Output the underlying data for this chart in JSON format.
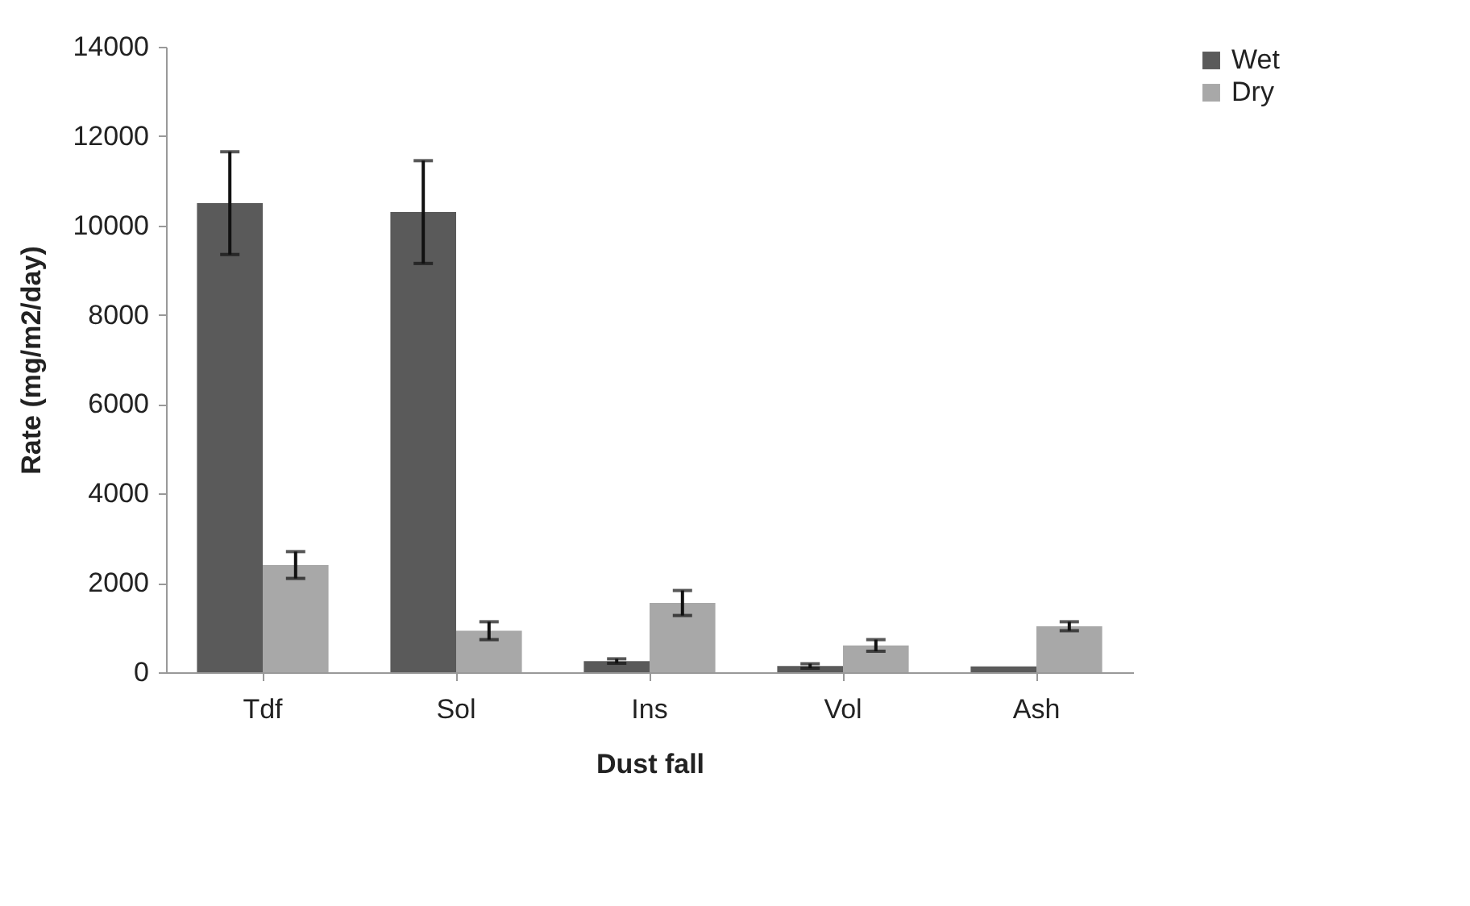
{
  "chart_data": {
    "type": "bar",
    "xlabel": "Dust fall",
    "ylabel": "Rate (mg/m2/day)",
    "categories": [
      "Tdf",
      "Sol",
      "Ins",
      "Vol",
      "Ash"
    ],
    "series": [
      {
        "name": "Wet",
        "color": "#5a5a5a",
        "values": [
          10500,
          10300,
          250,
          140,
          130
        ],
        "errors": [
          1150,
          1150,
          50,
          50,
          null
        ]
      },
      {
        "name": "Dry",
        "color": "#a8a8a8",
        "values": [
          2400,
          930,
          1550,
          600,
          1030
        ],
        "errors": [
          300,
          200,
          280,
          130,
          100
        ]
      }
    ],
    "ylim": [
      0,
      14000
    ],
    "yticks": [
      0,
      2000,
      4000,
      6000,
      8000,
      10000,
      12000,
      14000
    ],
    "grid": false,
    "legend": "right"
  }
}
